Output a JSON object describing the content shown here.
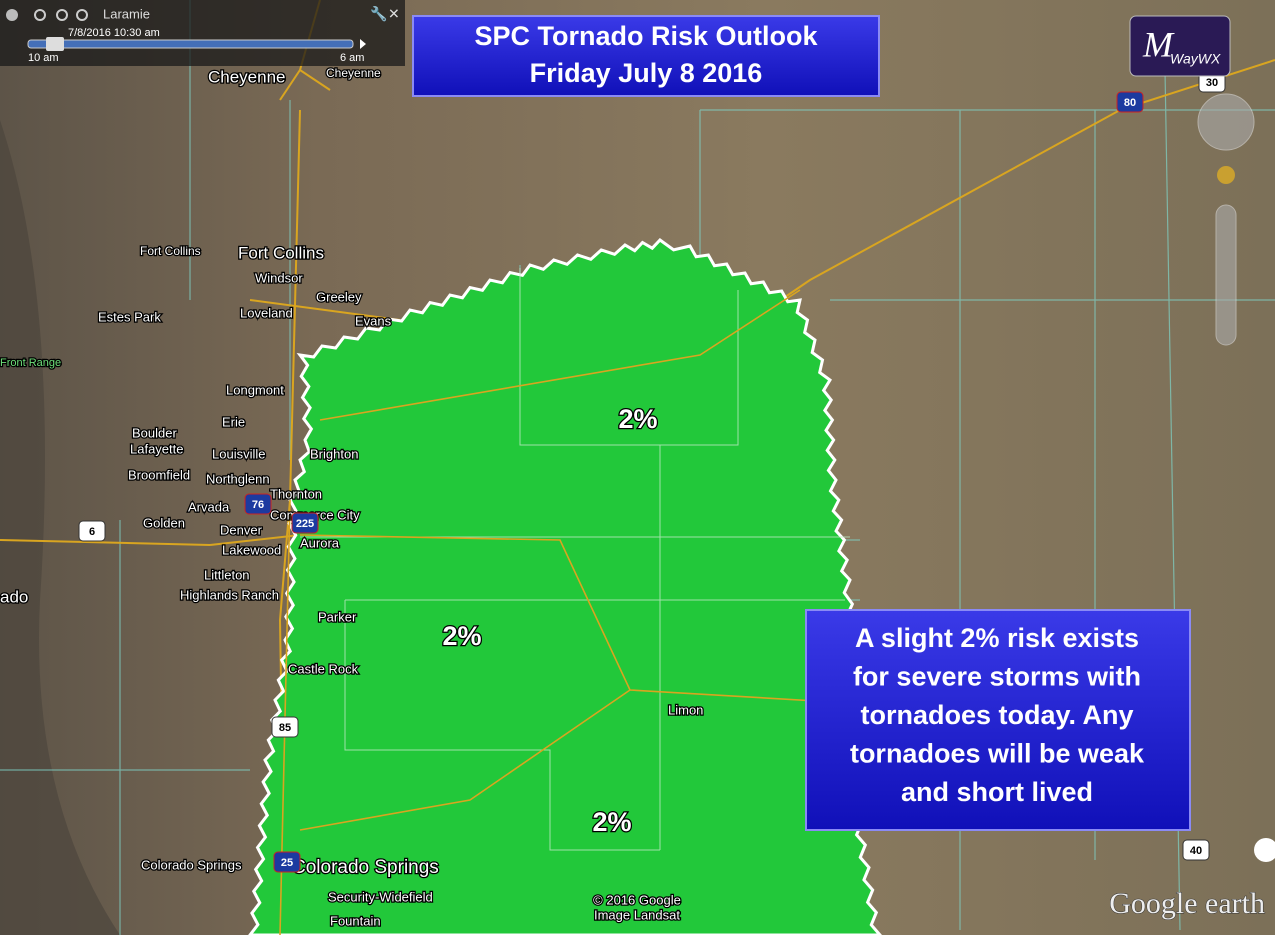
{
  "header": {
    "title_lines": [
      "SPC Tornado Risk Outlook",
      "Friday July 8 2016"
    ]
  },
  "logo": {
    "letter": "M",
    "name": "WayWX"
  },
  "time_slider": {
    "place": "Laramie",
    "timestamp": "7/8/2016  10:30 am",
    "start": "10 am",
    "end": "6 am"
  },
  "risk_labels": [
    "2%",
    "2%",
    "2%"
  ],
  "info_box": {
    "lines": [
      "A slight 2% risk exists",
      "for severe storms with",
      "tornadoes today. Any",
      "tornadoes will be weak",
      "and short lived"
    ]
  },
  "places": [
    "Cheyenne",
    "Cheyenne",
    "Fort Collins",
    "Fort Collins",
    "Windsor",
    "Greeley",
    "Evans",
    "Estes Park",
    "Loveland",
    "Front Range",
    "Longmont",
    "Erie",
    "Boulder",
    "Lafayette",
    "Louisville",
    "Brighton",
    "Broomfield",
    "Northglenn",
    "Thornton",
    "Arvada",
    "Commerce City",
    "Golden",
    "Denver",
    "Aurora",
    "Lakewood",
    "Littleton",
    "Highlands Ranch",
    "Parker",
    "Castle Rock",
    "Limon",
    "ado",
    "Colorado Springs",
    "Colorado Springs",
    "Security-Widefield",
    "Fountain"
  ],
  "highway_shields": [
    "80",
    "30",
    "76",
    "225",
    "6",
    "85",
    "25",
    "40"
  ],
  "attribution": {
    "lines": [
      "© 2016 Google",
      "Image Landsat"
    ],
    "brand": "Google earth"
  }
}
